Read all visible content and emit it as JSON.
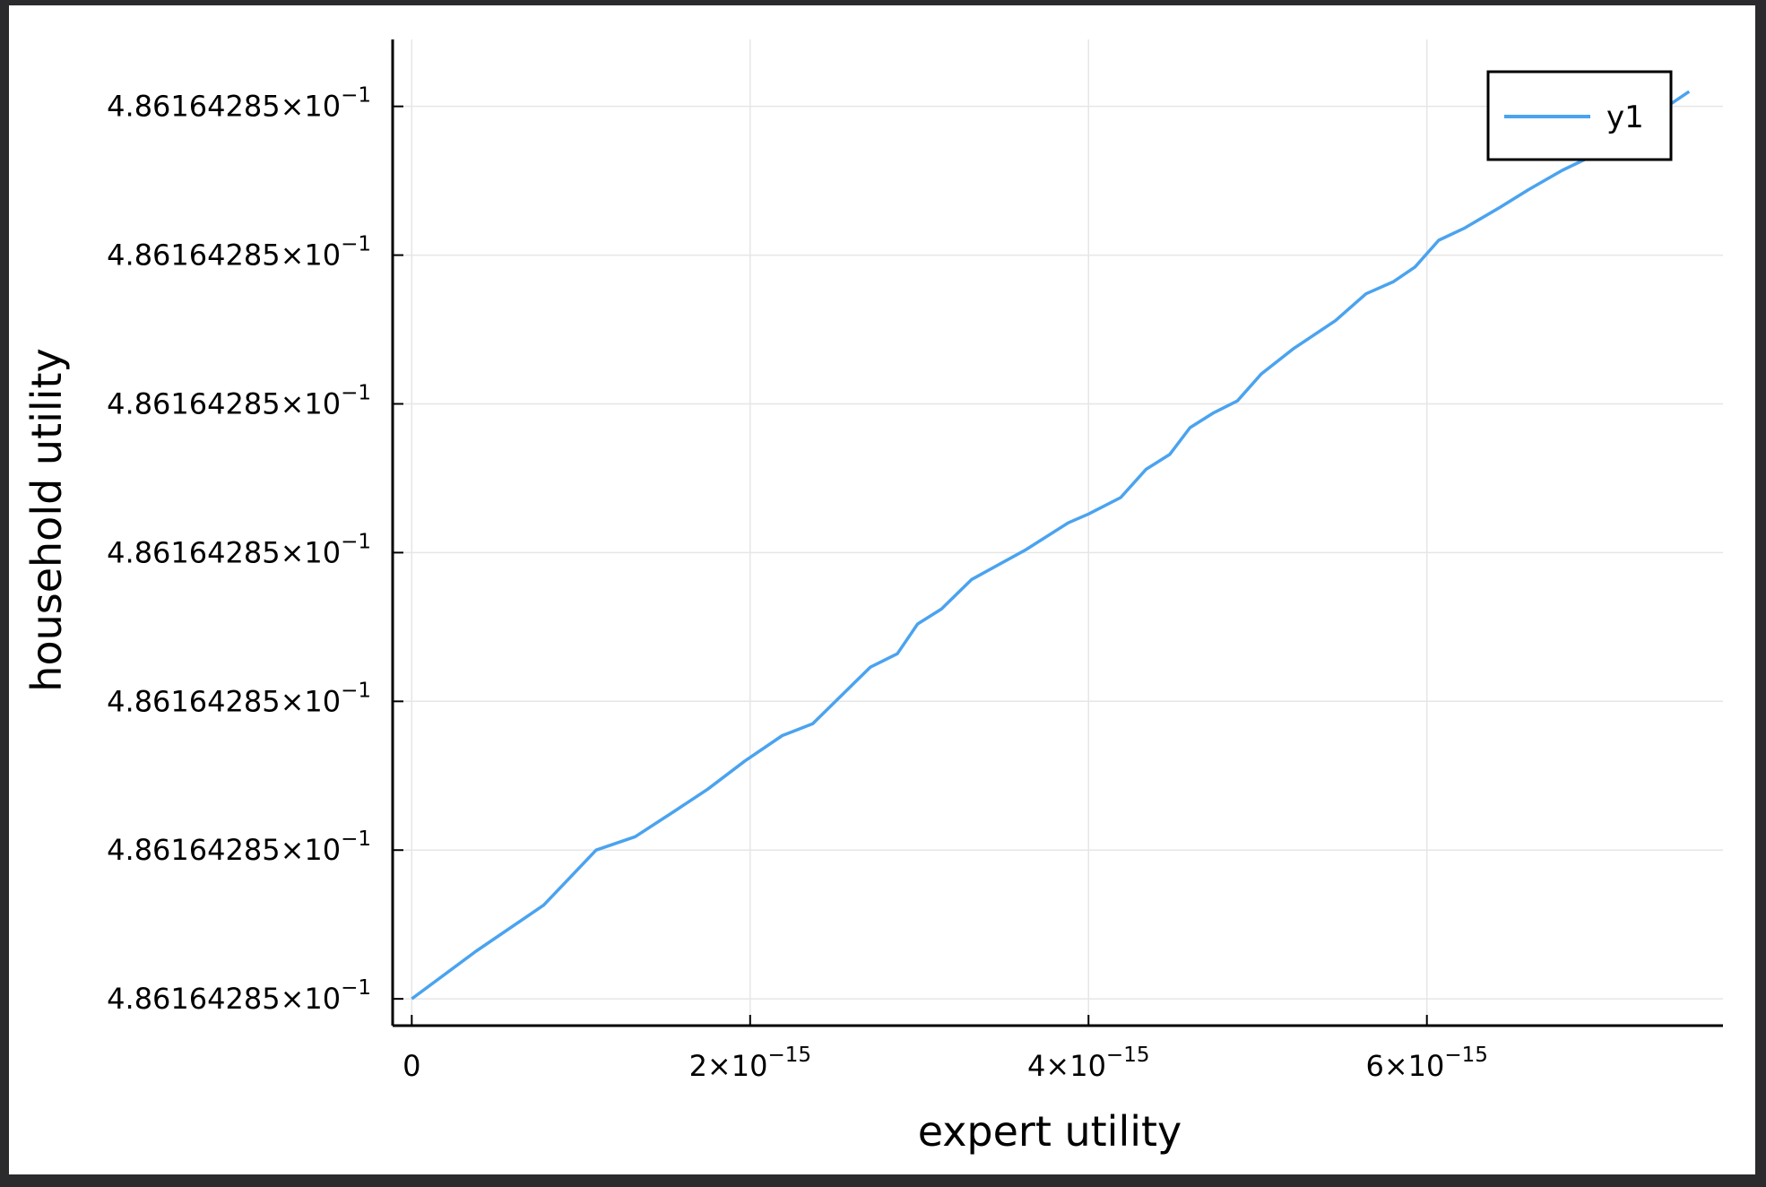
{
  "chart_data": {
    "type": "line",
    "xlabel": "expert utility",
    "ylabel": "household utility",
    "legend": {
      "position": "top-right",
      "entries": [
        "y1"
      ]
    },
    "grid": true,
    "colors": {
      "series": "#4aa3ef",
      "grid": "#e6e6e6",
      "axis": "#000000"
    },
    "xlim": [
      -1.13e-16,
      7.75e-15
    ],
    "ylim": [
      -0.18,
      6.45
    ],
    "x_ticks": [
      {
        "value": 0,
        "mantissa": "0",
        "exponent": ""
      },
      {
        "value": 2e-15,
        "mantissa": "2×10",
        "exponent": "−15"
      },
      {
        "value": 4e-15,
        "mantissa": "4×10",
        "exponent": "−15"
      },
      {
        "value": 6e-15,
        "mantissa": "6×10",
        "exponent": "−15"
      }
    ],
    "y_ticks": [
      {
        "value": 0,
        "mantissa": "4.86164285×10",
        "exponent": "−1"
      },
      {
        "value": 1,
        "mantissa": "4.86164285×10",
        "exponent": "−1"
      },
      {
        "value": 2,
        "mantissa": "4.86164285×10",
        "exponent": "−1"
      },
      {
        "value": 3,
        "mantissa": "4.86164285×10",
        "exponent": "−1"
      },
      {
        "value": 4,
        "mantissa": "4.86164285×10",
        "exponent": "−1"
      },
      {
        "value": 5,
        "mantissa": "4.86164285×10",
        "exponent": "−1"
      },
      {
        "value": 6,
        "mantissa": "4.86164285×10",
        "exponent": "−1"
      }
    ],
    "series": [
      {
        "name": "y1",
        "x": [
          0,
          3.8e-16,
          7.8e-16,
          1.09e-15,
          1.32e-15,
          1.55e-15,
          1.75e-15,
          1.97e-15,
          2.19e-15,
          2.37e-15,
          2.54e-15,
          2.71e-15,
          2.87e-15,
          2.99e-15,
          3.13e-15,
          3.31e-15,
          3.63e-15,
          3.88e-15,
          4e-15,
          4.19e-15,
          4.34e-15,
          4.48e-15,
          4.6e-15,
          4.74e-15,
          4.88e-15,
          5.02e-15,
          5.21e-15,
          5.46e-15,
          5.64e-15,
          5.8e-15,
          5.93e-15,
          6.07e-15,
          6.22e-15,
          6.43e-15,
          6.6e-15,
          6.8e-15,
          7e-15,
          7.2e-15,
          7.42e-15,
          7.55e-15
        ],
        "y": [
          0.0,
          0.32,
          0.63,
          1.0,
          1.09,
          1.26,
          1.41,
          1.6,
          1.77,
          1.85,
          2.04,
          2.23,
          2.32,
          2.52,
          2.62,
          2.82,
          3.02,
          3.2,
          3.26,
          3.37,
          3.56,
          3.66,
          3.84,
          3.94,
          4.02,
          4.2,
          4.37,
          4.56,
          4.74,
          4.82,
          4.92,
          5.1,
          5.18,
          5.32,
          5.44,
          5.57,
          5.68,
          5.82,
          6.0,
          6.1
        ]
      }
    ]
  }
}
